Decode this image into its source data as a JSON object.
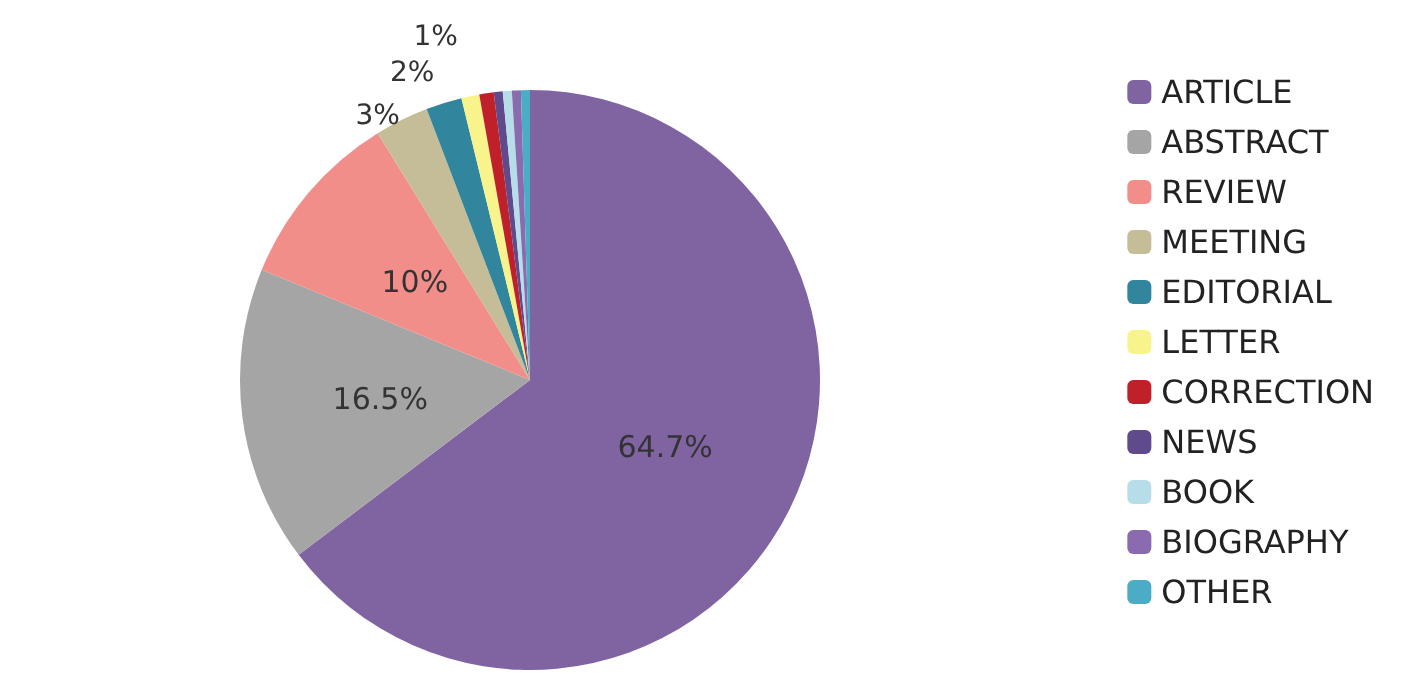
{
  "chart_data": {
    "type": "pie",
    "categories": [
      "ARTICLE",
      "ABSTRACT",
      "REVIEW",
      "MEETING",
      "EDITORIAL",
      "LETTER",
      "CORRECTION",
      "NEWS",
      "BOOK",
      "BIOGRAPHY",
      "OTHER"
    ],
    "values": [
      64.7,
      16.5,
      10,
      3,
      2,
      1,
      0.8,
      0.5,
      0.5,
      0.5,
      0.5
    ],
    "value_labels": [
      "64.7%",
      "16.5%",
      "10%",
      "3%",
      "2%",
      "1%",
      null,
      null,
      null,
      null,
      null
    ],
    "colors": [
      "#8064a2",
      "#a5a5a5",
      "#f28e8a",
      "#c4bd97",
      "#31859c",
      "#f9f38c",
      "#c0202a",
      "#5f4a8b",
      "#b7dde8",
      "#8a6bb0",
      "#4bacc6"
    ],
    "legend": "right"
  }
}
